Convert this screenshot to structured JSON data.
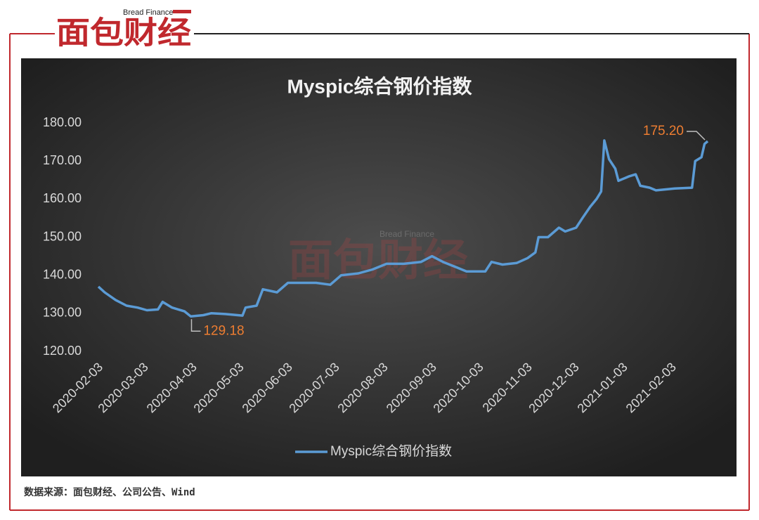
{
  "logo": {
    "name": "面包财经",
    "tagline": "Bread Finance"
  },
  "source": "数据来源：面包财经、公司公告、Wind",
  "chart_data": {
    "type": "line",
    "title": "Myspic综合钢价指数",
    "x": [
      "2020-02-03",
      "2020-02-07",
      "2020-02-14",
      "2020-02-21",
      "2020-02-28",
      "2020-03-05",
      "2020-03-12",
      "2020-03-15",
      "2020-03-21",
      "2020-03-29",
      "2020-04-02",
      "2020-04-10",
      "2020-04-15",
      "2020-04-24",
      "2020-05-05",
      "2020-05-07",
      "2020-05-14",
      "2020-05-18",
      "2020-05-27",
      "2020-06-03",
      "2020-06-12",
      "2020-06-21",
      "2020-06-30",
      "2020-07-07",
      "2020-07-18",
      "2020-07-27",
      "2020-08-05",
      "2020-08-16",
      "2020-08-27",
      "2020-09-03",
      "2020-09-10",
      "2020-09-19",
      "2020-09-25",
      "2020-10-07",
      "2020-10-11",
      "2020-10-18",
      "2020-10-27",
      "2020-11-03",
      "2020-11-08",
      "2020-11-10",
      "2020-11-16",
      "2020-11-23",
      "2020-11-27",
      "2020-12-04",
      "2020-12-08",
      "2020-12-13",
      "2020-12-17",
      "2020-12-20",
      "2020-12-22",
      "2020-12-25",
      "2020-12-29",
      "2020-12-31",
      "2021-01-07",
      "2021-01-11",
      "2021-01-14",
      "2021-01-20",
      "2021-01-24",
      "2021-02-05",
      "2021-02-16",
      "2021-02-18",
      "2021-02-22",
      "2021-02-24",
      "2021-02-26"
    ],
    "series": [
      {
        "name": "Myspic综合钢价指数",
        "color": "#5b9bd5",
        "values": [
          137,
          135.5,
          133.5,
          132,
          131.5,
          130.8,
          131,
          133,
          131.5,
          130.5,
          129.18,
          129.5,
          130,
          129.8,
          129.4,
          131.5,
          132,
          136.3,
          135.5,
          138,
          138,
          138,
          137.5,
          140,
          140.5,
          141.5,
          143,
          143,
          143.5,
          145,
          143.5,
          142,
          141,
          141,
          143.5,
          142.8,
          143.2,
          144.5,
          146,
          150,
          150,
          152.5,
          151.5,
          152.5,
          155,
          158,
          160,
          162,
          175.4,
          170.5,
          168,
          164.8,
          166,
          166.5,
          163.5,
          163,
          162.3,
          162.8,
          163,
          170,
          171,
          174.5,
          175.2
        ]
      }
    ],
    "xlim": [
      "2020-02-03",
      "2021-02-26"
    ],
    "xticks": [
      "2020-02-03",
      "2020-03-03",
      "2020-04-03",
      "2020-05-03",
      "2020-06-03",
      "2020-07-03",
      "2020-08-03",
      "2020-09-03",
      "2020-10-03",
      "2020-11-03",
      "2020-12-03",
      "2021-01-03",
      "2021-02-03"
    ],
    "ylim": [
      120,
      180
    ],
    "yticks": [
      {
        "value": 120,
        "label": "120.00"
      },
      {
        "value": 130,
        "label": "130.00"
      },
      {
        "value": 140,
        "label": "140.00"
      },
      {
        "value": 150,
        "label": "150.00"
      },
      {
        "value": 160,
        "label": "160.00"
      },
      {
        "value": 170,
        "label": "170.00"
      },
      {
        "value": 180,
        "label": "180.00"
      }
    ],
    "grid": false,
    "legend": "bottom",
    "annotations": [
      {
        "x": "2020-04-02",
        "y": 129.18,
        "label": "129.18"
      },
      {
        "x": "2021-02-26",
        "y": 175.2,
        "label": "175.20"
      }
    ]
  }
}
